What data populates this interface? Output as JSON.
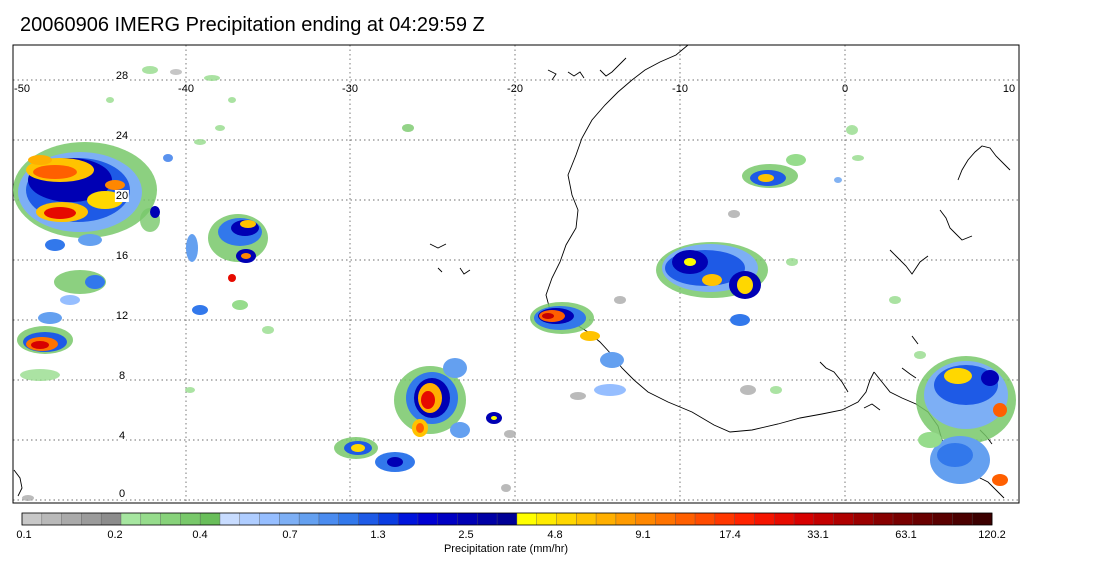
{
  "title": "20060906 IMERG Precipitation ending at 04:29:59 Z",
  "map": {
    "lon_labels": [
      "-50",
      "-40",
      "-30",
      "-20",
      "-10",
      "0",
      "10"
    ],
    "lat_labels": [
      "28",
      "24",
      "20",
      "16",
      "12",
      "8",
      "4",
      "0"
    ],
    "region": "West Africa / Eastern Atlantic",
    "gridlines": "dotted"
  },
  "colorbar": {
    "title": "Precipitation rate (mm/hr)",
    "tick_labels": [
      "0.1",
      "0.2",
      "0.4",
      "0.7",
      "1.3",
      "2.5",
      "4.8",
      "9.1",
      "17.4",
      "33.1",
      "63.1",
      "120.2"
    ],
    "colors": [
      "#c8c8c8",
      "#b9b9b9",
      "#aaaaaa",
      "#9b9b9b",
      "#8c8c8c",
      "#a6e6a0",
      "#96dc8c",
      "#87d27a",
      "#78c86a",
      "#69be5a",
      "#c8dcff",
      "#afcdff",
      "#96beff",
      "#7daff5",
      "#64a0f0",
      "#4b8cf0",
      "#3278eb",
      "#1e5ae6",
      "#0a3ce1",
      "#0014dc",
      "#0000d2",
      "#0000c3",
      "#0000b4",
      "#0000a5",
      "#000096",
      "#ffff00",
      "#ffeb00",
      "#ffd700",
      "#ffc300",
      "#ffaf00",
      "#ff9b00",
      "#ff8700",
      "#ff7300",
      "#ff5f00",
      "#ff4b00",
      "#ff3700",
      "#ff2300",
      "#f51400",
      "#e60a00",
      "#d70000",
      "#c30000",
      "#af0000",
      "#9b0000",
      "#870000",
      "#780000",
      "#690000",
      "#5a0000",
      "#4b0000",
      "#3c0000"
    ]
  }
}
